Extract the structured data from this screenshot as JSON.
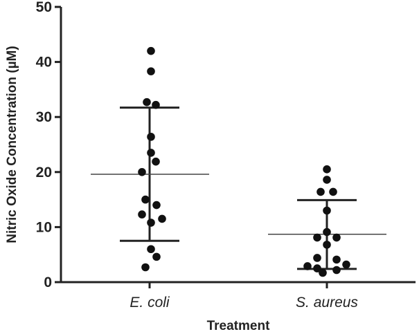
{
  "chart_data": {
    "type": "scatter",
    "xlabel": "Treatment",
    "ylabel": "Nitric Oxide Concentration (µM)",
    "ylim": [
      0,
      50
    ],
    "yticks": [
      0,
      10,
      20,
      30,
      40,
      50
    ],
    "categories": [
      "E. coli",
      "S. aureus"
    ],
    "groups": [
      {
        "category": "E. coli",
        "points": [
          42.0,
          38.3,
          32.7,
          32.2,
          26.4,
          23.5,
          21.9,
          20.0,
          15.0,
          14.0,
          12.3,
          11.5,
          10.8,
          6.0,
          4.6,
          2.7
        ],
        "mean": 19.6,
        "error_high": 31.7,
        "error_low": 7.5
      },
      {
        "category": "S. aureus",
        "points": [
          20.5,
          18.6,
          16.4,
          16.4,
          13.0,
          9.1,
          8.1,
          8.1,
          6.8,
          4.4,
          4.1,
          3.2,
          2.9,
          2.5,
          2.2,
          1.7
        ],
        "mean": 8.7,
        "error_high": 14.9,
        "error_low": 2.4
      }
    ],
    "colors": {
      "points": "#111111",
      "axis": "#222222",
      "mean_line": "#444444"
    }
  }
}
